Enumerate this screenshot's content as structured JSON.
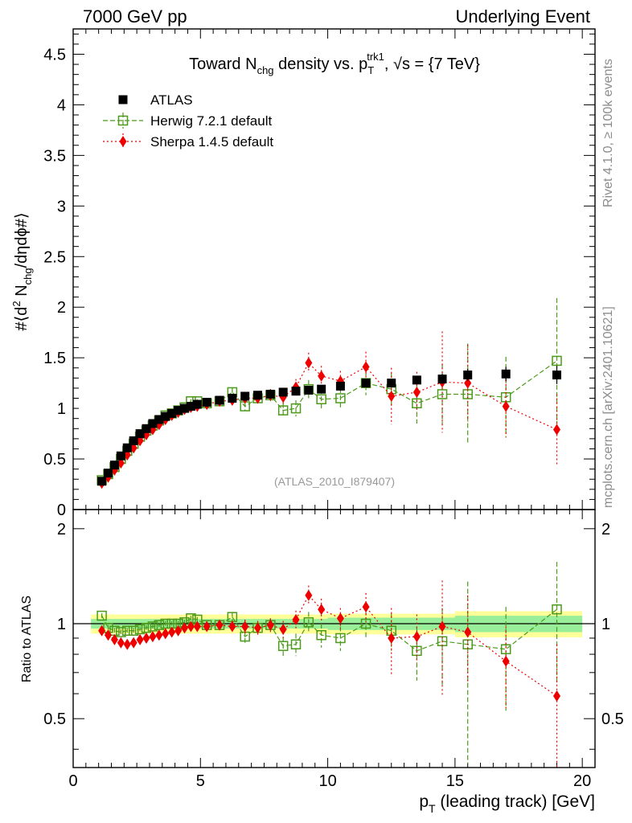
{
  "header": {
    "left": "7000 GeV pp",
    "right": "Underlying Event"
  },
  "side_labels": {
    "top": "Rivet 4.1.0, ≥ 100k events",
    "bottom": "mcplots.cern.ch [arXiv:2401.10621]"
  },
  "colors": {
    "atlas": "#000000",
    "herwig": "#4c9a1a",
    "sherpa": "#ee0000",
    "band_outer": "#ffff99",
    "band_inner": "#99ee99",
    "watermark": "#999999"
  },
  "chart_data": [
    {
      "type": "scatter",
      "panel": "main",
      "title": "Toward N_chg density vs. p_T^trk1, √s = {7 TeV}",
      "title_parts": {
        "a": "Toward N",
        "a_sub": "chg",
        "b": " density vs. p",
        "b_sub": "T",
        "b_sup": "trk1",
        "c": ", √s = {7 TeV}"
      },
      "ylabel": "#⟨d² N_chg/dηdϕ#⟩",
      "ylabel_parts": {
        "a": "#⟨d",
        "sup": "2",
        "b": " N",
        "sub": "chg",
        "c": "/dηdϕ#⟩"
      },
      "xlim": [
        0,
        20.5
      ],
      "ylim": [
        0,
        4.75
      ],
      "yticks": [
        0,
        0.5,
        1,
        1.5,
        2,
        2.5,
        3,
        3.5,
        4,
        4.5
      ],
      "ytick_labels": [
        "0",
        "0.5",
        "1",
        "1.5",
        "2",
        "2.5",
        "3",
        "3.5",
        "4",
        "4.5"
      ],
      "watermark": "(ATLAS_2010_I879407)",
      "legend_position": "top-left",
      "x": [
        1.125,
        1.375,
        1.625,
        1.875,
        2.125,
        2.375,
        2.625,
        2.875,
        3.125,
        3.375,
        3.625,
        3.875,
        4.125,
        4.375,
        4.625,
        4.875,
        5.25,
        5.75,
        6.25,
        6.75,
        7.25,
        7.75,
        8.25,
        8.75,
        9.25,
        9.75,
        10.5,
        11.5,
        12.5,
        13.5,
        14.5,
        15.5,
        17.0,
        19.0
      ],
      "series": [
        {
          "name": "ATLAS",
          "marker": "square-filled",
          "values": [
            0.28,
            0.36,
            0.44,
            0.53,
            0.61,
            0.68,
            0.75,
            0.8,
            0.85,
            0.89,
            0.92,
            0.95,
            0.98,
            1.0,
            1.02,
            1.04,
            1.06,
            1.08,
            1.1,
            1.12,
            1.13,
            1.14,
            1.16,
            1.17,
            1.18,
            1.19,
            1.22,
            1.25,
            1.25,
            1.28,
            1.29,
            1.33,
            1.34,
            1.33
          ],
          "errors": [
            0.02,
            0.02,
            0.02,
            0.02,
            0.02,
            0.02,
            0.02,
            0.02,
            0.02,
            0.02,
            0.02,
            0.02,
            0.02,
            0.02,
            0.02,
            0.02,
            0.02,
            0.02,
            0.02,
            0.02,
            0.02,
            0.02,
            0.02,
            0.02,
            0.02,
            0.02,
            0.03,
            0.03,
            0.04,
            0.04,
            0.05,
            0.06,
            0.07,
            0.09
          ]
        },
        {
          "name": "Herwig 7.2.1 default",
          "marker": "square-open",
          "line": "dashed",
          "values": [
            0.29,
            0.35,
            0.42,
            0.5,
            0.58,
            0.65,
            0.72,
            0.78,
            0.83,
            0.88,
            0.93,
            0.95,
            0.98,
            1.01,
            1.07,
            1.07,
            1.05,
            1.07,
            1.16,
            1.02,
            1.1,
            1.13,
            0.98,
            1.0,
            1.19,
            1.09,
            1.1,
            1.25,
            1.19,
            1.05,
            1.14,
            1.14,
            1.11,
            1.47
          ],
          "errors": [
            0.02,
            0.02,
            0.02,
            0.02,
            0.02,
            0.02,
            0.02,
            0.02,
            0.02,
            0.02,
            0.02,
            0.02,
            0.02,
            0.02,
            0.02,
            0.02,
            0.02,
            0.03,
            0.04,
            0.04,
            0.05,
            0.06,
            0.07,
            0.08,
            0.09,
            0.1,
            0.1,
            0.12,
            0.16,
            0.2,
            0.3,
            0.5,
            0.4,
            0.62
          ]
        },
        {
          "name": "Sherpa 1.4.5 default",
          "marker": "diamond-filled",
          "line": "dotted",
          "values": [
            0.26,
            0.32,
            0.39,
            0.46,
            0.54,
            0.61,
            0.68,
            0.74,
            0.79,
            0.84,
            0.89,
            0.93,
            0.96,
            0.99,
            1.01,
            1.02,
            1.04,
            1.07,
            1.08,
            1.1,
            1.1,
            1.13,
            1.11,
            1.21,
            1.45,
            1.32,
            1.27,
            1.41,
            1.12,
            1.16,
            1.26,
            1.25,
            1.02,
            0.79
          ],
          "errors": [
            0.01,
            0.01,
            0.01,
            0.01,
            0.01,
            0.01,
            0.01,
            0.01,
            0.01,
            0.01,
            0.01,
            0.02,
            0.02,
            0.02,
            0.02,
            0.03,
            0.03,
            0.03,
            0.04,
            0.05,
            0.05,
            0.06,
            0.07,
            0.08,
            0.1,
            0.1,
            0.1,
            0.15,
            0.28,
            0.2,
            0.5,
            0.38,
            0.3,
            0.35
          ]
        }
      ]
    },
    {
      "type": "scatter",
      "panel": "ratio",
      "ylabel": "Ratio to ATLAS",
      "xlabel": "p_T (leading track) [GeV]",
      "xlabel_parts": {
        "a": "p",
        "sub": "T",
        "b": " (leading track) [GeV]"
      },
      "xlim": [
        0,
        20.5
      ],
      "ylim": [
        0.35,
        2.3
      ],
      "yticks": [
        0.5,
        1,
        2
      ],
      "ytick_labels": [
        "0.5",
        "1",
        "2"
      ],
      "xticks": [
        0,
        5,
        10,
        15,
        20
      ],
      "xtick_labels": [
        "0",
        "5",
        "10",
        "15",
        "20"
      ],
      "reference": 1.0,
      "band_inner": [
        [
          1.0,
          0.035
        ],
        [
          5.0,
          0.035
        ],
        [
          10.0,
          0.045
        ],
        [
          15.0,
          0.06
        ],
        [
          20.0,
          0.075
        ]
      ],
      "band_outer": [
        [
          1.0,
          0.07
        ],
        [
          5.0,
          0.07
        ],
        [
          10.0,
          0.075
        ],
        [
          15.0,
          0.095
        ],
        [
          20.0,
          0.11
        ]
      ],
      "series": [
        {
          "name": "Herwig 7.2.1 default",
          "values": [
            1.06,
            0.97,
            0.95,
            0.94,
            0.95,
            0.95,
            0.96,
            0.97,
            0.98,
            0.99,
            1.0,
            1.0,
            1.0,
            1.01,
            1.04,
            1.03,
            0.99,
            0.99,
            1.05,
            0.91,
            0.97,
            0.99,
            0.85,
            0.86,
            1.01,
            0.92,
            0.9,
            1.0,
            0.95,
            0.82,
            0.88,
            0.86,
            0.83,
            1.11
          ],
          "errors": [
            0.02,
            0.02,
            0.02,
            0.02,
            0.02,
            0.02,
            0.02,
            0.02,
            0.02,
            0.02,
            0.02,
            0.02,
            0.02,
            0.02,
            0.02,
            0.02,
            0.02,
            0.03,
            0.04,
            0.04,
            0.05,
            0.05,
            0.06,
            0.07,
            0.08,
            0.08,
            0.08,
            0.1,
            0.13,
            0.16,
            0.24,
            0.5,
            0.3,
            0.46
          ]
        },
        {
          "name": "Sherpa 1.4.5 default",
          "values": [
            0.95,
            0.92,
            0.89,
            0.87,
            0.86,
            0.87,
            0.89,
            0.9,
            0.91,
            0.92,
            0.93,
            0.94,
            0.95,
            0.97,
            0.98,
            0.98,
            0.98,
            0.99,
            0.98,
            0.98,
            0.97,
            0.99,
            0.96,
            1.03,
            1.23,
            1.11,
            1.04,
            1.13,
            0.9,
            0.91,
            0.98,
            0.94,
            0.76,
            0.59
          ],
          "errors": [
            0.01,
            0.01,
            0.01,
            0.01,
            0.01,
            0.01,
            0.01,
            0.01,
            0.01,
            0.01,
            0.01,
            0.02,
            0.02,
            0.02,
            0.02,
            0.03,
            0.03,
            0.03,
            0.04,
            0.05,
            0.05,
            0.05,
            0.06,
            0.07,
            0.09,
            0.09,
            0.08,
            0.12,
            0.22,
            0.16,
            0.39,
            0.29,
            0.22,
            0.27
          ]
        }
      ]
    }
  ],
  "legend": [
    {
      "label": "ATLAS"
    },
    {
      "label": "Herwig 7.2.1 default"
    },
    {
      "label": "Sherpa 1.4.5 default"
    }
  ]
}
